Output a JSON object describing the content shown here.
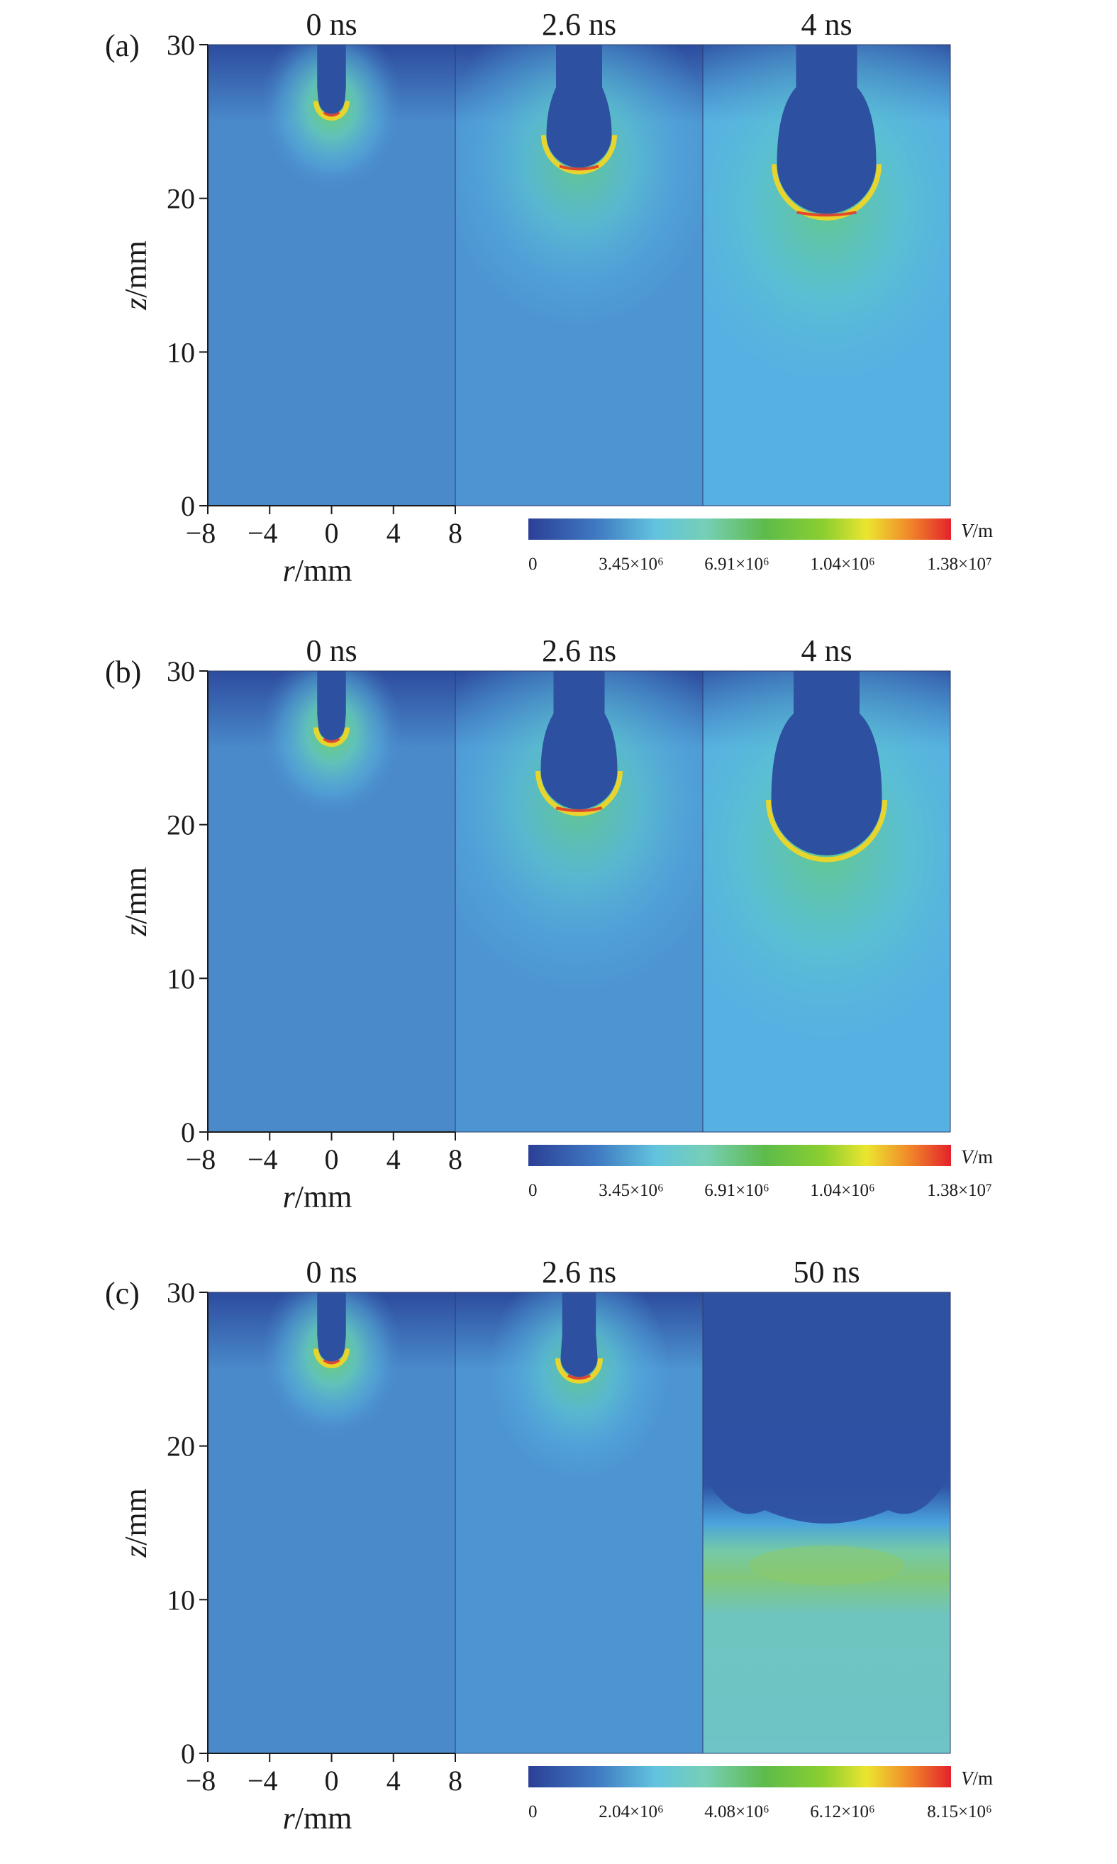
{
  "chart_data": [
    {
      "type": "heatmap",
      "label": "(a)",
      "frames": [
        "0 ns",
        "2.6 ns",
        "4 ns"
      ],
      "xlabel_var": "r",
      "xlabel_unit": "/mm",
      "ylabel_var": "z",
      "ylabel_unit": "/mm",
      "xticks": [
        -8,
        -4,
        0,
        4,
        8
      ],
      "yticks": [
        0,
        10,
        20,
        30
      ],
      "xlim": [
        -8,
        8
      ],
      "ylim": [
        0,
        30
      ],
      "tip_z_mm": [
        25.5,
        22.0,
        19.0
      ],
      "colorbar": {
        "unit_var": "V",
        "unit_rest": "/m",
        "ticks": [
          "0",
          "3.45×10⁶",
          "6.91×10⁶",
          "1.04×10⁶",
          "1.38×10⁷"
        ]
      }
    },
    {
      "type": "heatmap",
      "label": "(b)",
      "frames": [
        "0 ns",
        "2.6 ns",
        "4 ns"
      ],
      "xlabel_var": "r",
      "xlabel_unit": "/mm",
      "ylabel_var": "z",
      "ylabel_unit": "/mm",
      "xticks": [
        -8,
        -4,
        0,
        4,
        8
      ],
      "yticks": [
        0,
        10,
        20,
        30
      ],
      "xlim": [
        -8,
        8
      ],
      "ylim": [
        0,
        30
      ],
      "tip_z_mm": [
        25.5,
        21.0,
        18.0
      ],
      "colorbar": {
        "unit_var": "V",
        "unit_rest": "/m",
        "ticks": [
          "0",
          "3.45×10⁶",
          "6.91×10⁶",
          "1.04×10⁶",
          "1.38×10⁷"
        ]
      }
    },
    {
      "type": "heatmap",
      "label": "(c)",
      "frames": [
        "0 ns",
        "2.6 ns",
        "50 ns"
      ],
      "xlabel_var": "r",
      "xlabel_unit": "/mm",
      "ylabel_var": "z",
      "ylabel_unit": "/mm",
      "xticks": [
        -8,
        -4,
        0,
        4,
        8
      ],
      "yticks": [
        0,
        10,
        20,
        30
      ],
      "xlim": [
        -8,
        8
      ],
      "ylim": [
        0,
        30
      ],
      "tip_z_mm": [
        25.5,
        24.5,
        15.0
      ],
      "colorbar": {
        "unit_var": "V",
        "unit_rest": "/m",
        "ticks": [
          "0",
          "2.04×10⁶",
          "4.08×10⁶",
          "6.12×10⁶",
          "8.15×10⁶"
        ]
      }
    }
  ],
  "colors": {
    "field_dark": "#2d50a0",
    "field_mid": "#4a8acb",
    "field_light": "#56b1e2",
    "field_cyan": "#6cc3c7",
    "field_green": "#5fb336",
    "field_yellow": "#e7e12f",
    "field_red": "#e5252a"
  }
}
